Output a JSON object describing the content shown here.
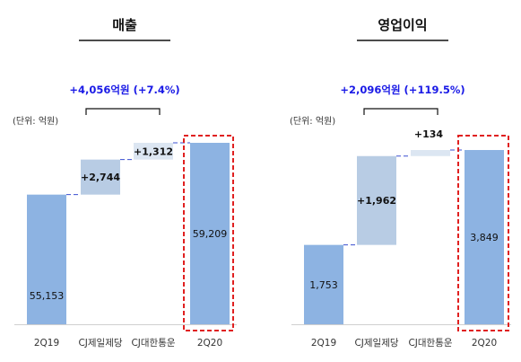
{
  "colors": {
    "base_bar": "#8db3e2",
    "delta_bar": "#b8cce4",
    "delta_bar_light": "#dce6f2",
    "connector": "#3a4fd0",
    "highlight_box": "#e02020",
    "annotation": "#1a1ae6"
  },
  "chart_data": [
    {
      "type": "bar",
      "subtype": "waterfall",
      "title": "매출",
      "unit_label": "(단위: 억원)",
      "annotation": "+4,056억원 (+7.4%)",
      "categories": [
        "2Q19",
        "CJ제일제당",
        "CJ대한통운",
        "2Q20"
      ],
      "values": [
        55153,
        2744,
        1312,
        59209
      ],
      "labels": [
        "55,153",
        "+2,744",
        "+1,312",
        "59,209"
      ],
      "kinds": [
        "total",
        "delta",
        "delta",
        "total"
      ],
      "highlight": "2Q20"
    },
    {
      "type": "bar",
      "subtype": "waterfall",
      "title": "영업이익",
      "unit_label": "(단위: 억원)",
      "annotation": "+2,096억원 (+119.5%)",
      "categories": [
        "2Q19",
        "CJ제일제당",
        "CJ대한통운",
        "2Q20"
      ],
      "values": [
        1753,
        1962,
        134,
        3849
      ],
      "labels": [
        "1,753",
        "+1,962",
        "+134",
        "3,849"
      ],
      "kinds": [
        "total",
        "delta",
        "delta",
        "total"
      ],
      "highlight": "2Q20"
    }
  ]
}
